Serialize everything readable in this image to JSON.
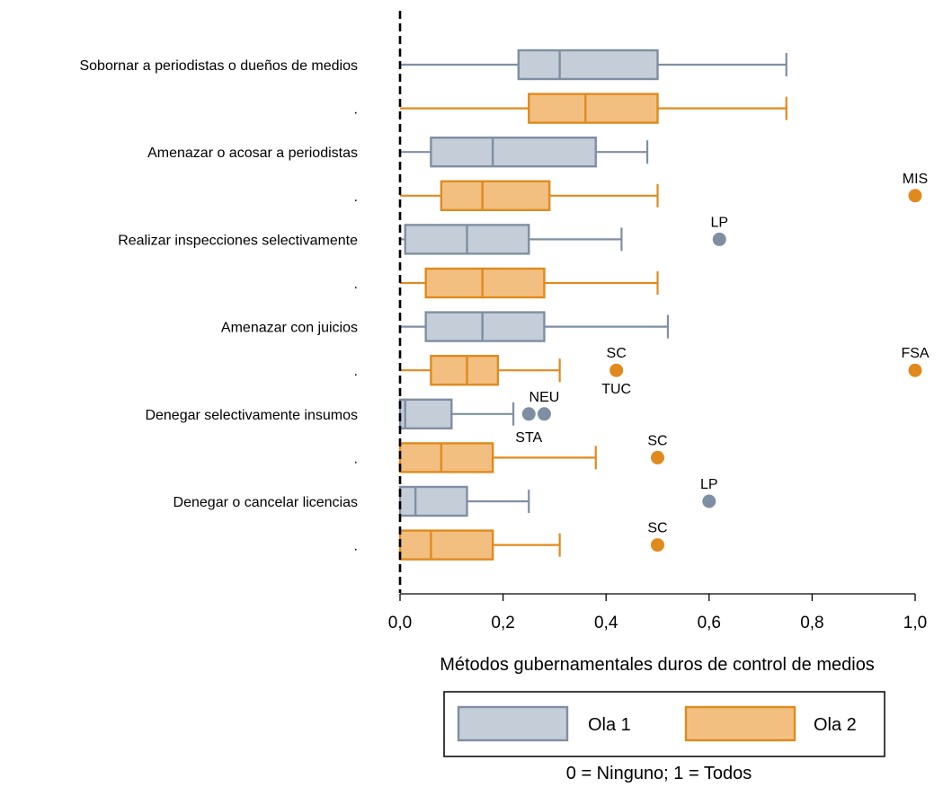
{
  "chart_data": {
    "type": "boxplot",
    "orientation": "horizontal",
    "xlabel": "Métodos gubernamentales duros de control de medios",
    "xlim": [
      0,
      1
    ],
    "xticks": [
      0.0,
      0.2,
      0.4,
      0.6,
      0.8,
      1.0
    ],
    "xtick_labels": [
      "0,0",
      "0,2",
      "0,4",
      "0,6",
      "0,8",
      "1,0"
    ],
    "reference_line": {
      "x": 0,
      "style": "dashed"
    },
    "grid": false,
    "legend_position": "bottom",
    "series": [
      {
        "name": "Ola 1",
        "color": "#7f8fa3",
        "fill": "#c4cdd8"
      },
      {
        "name": "Ola 2",
        "color": "#e08a1e",
        "fill": "#f2bf80"
      }
    ],
    "categories": [
      {
        "label": "Sobornar a periodistas o dueños de medios",
        "rows": [
          {
            "series": "Ola 1",
            "min": 0,
            "q1": 0.23,
            "median": 0.31,
            "q3": 0.5,
            "max": 0.75,
            "outliers": []
          },
          {
            "series": "Ola 2",
            "label": ".",
            "min": 0,
            "q1": 0.25,
            "median": 0.36,
            "q3": 0.5,
            "max": 0.75,
            "outliers": []
          }
        ]
      },
      {
        "label": "Amenazar o acosar a periodistas",
        "rows": [
          {
            "series": "Ola 1",
            "min": 0,
            "q1": 0.06,
            "median": 0.18,
            "q3": 0.38,
            "max": 0.48,
            "outliers": []
          },
          {
            "series": "Ola 2",
            "label": ".",
            "min": 0,
            "q1": 0.08,
            "median": 0.16,
            "q3": 0.29,
            "max": 0.5,
            "outliers": [
              {
                "value": 1.0,
                "label": "MIS"
              }
            ]
          }
        ]
      },
      {
        "label": "Realizar inspecciones selectivamente",
        "rows": [
          {
            "series": "Ola 1",
            "min": 0,
            "q1": 0.01,
            "median": 0.13,
            "q3": 0.25,
            "max": 0.43,
            "outliers": [
              {
                "value": 0.62,
                "label": "LP"
              }
            ]
          },
          {
            "series": "Ola 2",
            "label": ".",
            "min": 0,
            "q1": 0.05,
            "median": 0.16,
            "q3": 0.28,
            "max": 0.5,
            "outliers": []
          }
        ]
      },
      {
        "label": "Amenazar con juicios",
        "rows": [
          {
            "series": "Ola 1",
            "min": 0,
            "q1": 0.05,
            "median": 0.16,
            "q3": 0.28,
            "max": 0.52,
            "outliers": []
          },
          {
            "series": "Ola 2",
            "label": ".",
            "min": 0,
            "q1": 0.06,
            "median": 0.13,
            "q3": 0.19,
            "max": 0.31,
            "outliers": [
              {
                "value": 0.42,
                "label": "SC",
                "label2": "TUC"
              },
              {
                "value": 1.0,
                "label": "FSA"
              }
            ]
          }
        ]
      },
      {
        "label": "Denegar selectivamente insumos",
        "rows": [
          {
            "series": "Ola 1",
            "min": 0,
            "q1": 0.0,
            "median": 0.01,
            "q3": 0.1,
            "max": 0.22,
            "outliers": [
              {
                "value": 0.25,
                "label": "STA",
                "placement": "below"
              },
              {
                "value": 0.28,
                "label": "NEU"
              }
            ]
          },
          {
            "series": "Ola 2",
            "label": ".",
            "min": 0,
            "q1": 0.0,
            "median": 0.08,
            "q3": 0.18,
            "max": 0.38,
            "outliers": [
              {
                "value": 0.5,
                "label": "SC"
              }
            ]
          }
        ]
      },
      {
        "label": "Denegar o cancelar licencias",
        "rows": [
          {
            "series": "Ola 1",
            "min": 0,
            "q1": 0.0,
            "median": 0.03,
            "q3": 0.13,
            "max": 0.25,
            "outliers": [
              {
                "value": 0.6,
                "label": "LP"
              }
            ]
          },
          {
            "series": "Ola 2",
            "label": ".",
            "min": 0,
            "q1": 0.0,
            "median": 0.06,
            "q3": 0.18,
            "max": 0.31,
            "outliers": [
              {
                "value": 0.5,
                "label": "SC"
              }
            ]
          }
        ]
      }
    ],
    "note": "0 = Ninguno; 1 = Todos"
  }
}
